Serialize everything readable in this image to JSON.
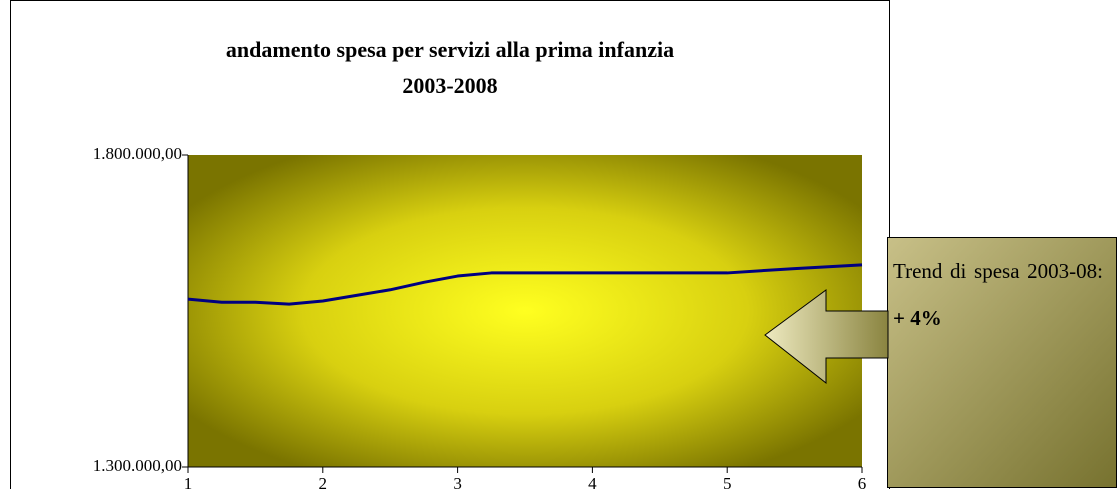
{
  "chart_data": {
    "type": "line",
    "title": [
      "andamento spesa per servizi alla prima infanzia",
      "2003-2008"
    ],
    "x": [
      1,
      1.25,
      1.5,
      1.75,
      2,
      2.25,
      2.5,
      2.75,
      3,
      3.25,
      3.5,
      4,
      4.5,
      5,
      5.5,
      6
    ],
    "values": [
      1569000,
      1564000,
      1564000,
      1561000,
      1566000,
      1575000,
      1584000,
      1596000,
      1606000,
      1611000,
      1611000,
      1611000,
      1611000,
      1611000,
      1618000,
      1624000
    ],
    "color": "#000080",
    "xlim": [
      1,
      6
    ],
    "xticks": [
      1,
      2,
      3,
      4,
      5,
      6
    ],
    "ylim": [
      1300000,
      1800000
    ],
    "yticks": [
      {
        "value": 1300000,
        "label": "1.300.000,00"
      },
      {
        "value": 1800000,
        "label": "1.800.000,00"
      }
    ],
    "annotation": {
      "text": "Trend di spesa 2003-08:",
      "highlight": "+ 4%"
    }
  }
}
